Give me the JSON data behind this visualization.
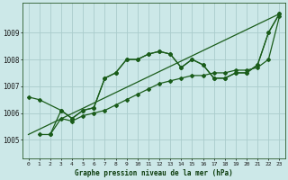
{
  "title": "Graphe pression niveau de la mer (hPa)",
  "background_color": "#cce8e8",
  "grid_color": "#aacccc",
  "line_color": "#1a5c1a",
  "xlim": [
    -0.5,
    23.5
  ],
  "ylim": [
    1004.3,
    1010.1
  ],
  "yticks": [
    1005,
    1006,
    1007,
    1008,
    1009
  ],
  "xticks": [
    0,
    1,
    2,
    3,
    4,
    5,
    6,
    7,
    8,
    9,
    10,
    11,
    12,
    13,
    14,
    15,
    16,
    17,
    18,
    19,
    20,
    21,
    22,
    23
  ],
  "series1_x": [
    0,
    1,
    3,
    4,
    5,
    6,
    7,
    8,
    9,
    10,
    11,
    12,
    13,
    14,
    15,
    16,
    17,
    18,
    19,
    20,
    21,
    22,
    23
  ],
  "series1_y": [
    1006.6,
    1006.5,
    1006.1,
    1005.8,
    1006.1,
    1006.2,
    1007.3,
    1007.5,
    1008.0,
    1008.0,
    1008.2,
    1008.3,
    1008.2,
    1007.7,
    1008.0,
    1007.8,
    1007.3,
    1007.3,
    1007.5,
    1007.5,
    1007.8,
    1009.0,
    1009.7
  ],
  "series2_x": [
    2,
    3,
    4,
    5,
    6,
    7,
    8,
    9,
    10,
    11,
    12,
    13,
    14,
    15,
    16,
    17,
    18,
    19,
    20,
    21,
    22,
    23
  ],
  "series2_y": [
    1005.2,
    1006.1,
    1005.8,
    1006.1,
    1006.2,
    1007.3,
    1007.5,
    1008.0,
    1008.0,
    1008.2,
    1008.3,
    1008.2,
    1007.7,
    1008.0,
    1007.8,
    1007.3,
    1007.3,
    1007.5,
    1007.5,
    1007.8,
    1009.0,
    1009.7
  ],
  "series3_x": [
    1,
    2,
    3,
    4,
    5,
    6,
    7,
    8,
    9,
    10,
    11,
    12,
    13,
    14,
    15,
    16,
    17,
    18,
    19,
    20,
    21,
    22,
    23
  ],
  "series3_y": [
    1005.2,
    1005.2,
    1005.8,
    1005.7,
    1005.9,
    1006.0,
    1006.1,
    1006.3,
    1006.5,
    1006.7,
    1006.9,
    1007.1,
    1007.2,
    1007.3,
    1007.4,
    1007.4,
    1007.5,
    1007.5,
    1007.6,
    1007.6,
    1007.7,
    1008.0,
    1009.6
  ],
  "series4_x": [
    0,
    23
  ],
  "series4_y": [
    1005.2,
    1009.7
  ],
  "marker": "D",
  "marker_size": 2.0,
  "linewidth": 0.9
}
